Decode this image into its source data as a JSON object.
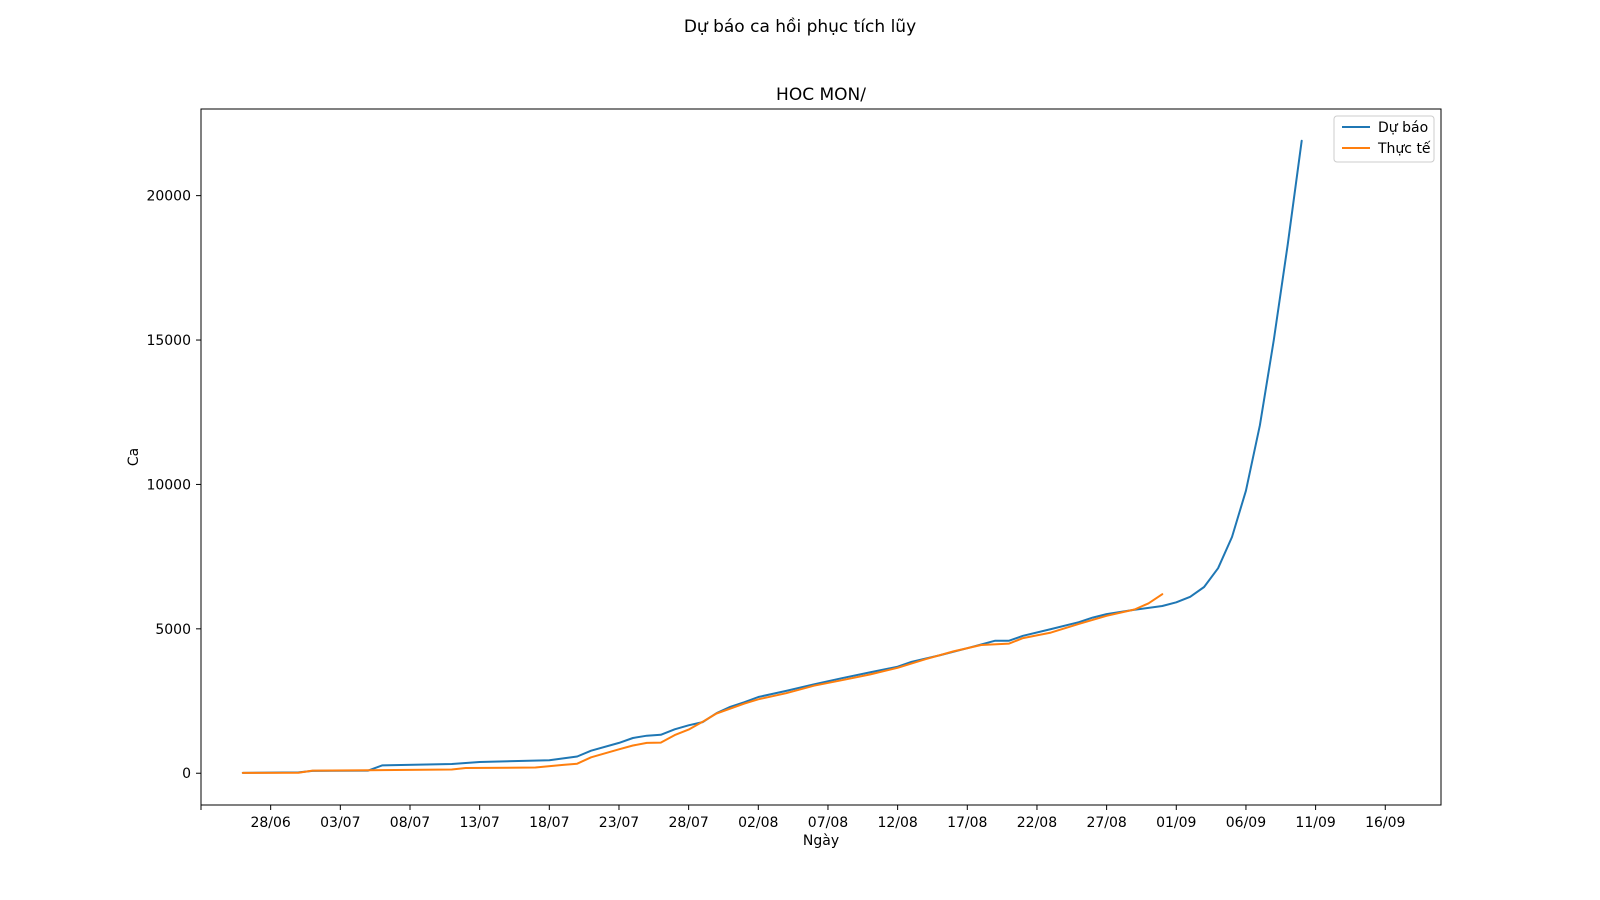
{
  "figure_title": "Dự báo ca hồi phục tích lũy",
  "chart_data": {
    "type": "line",
    "title": "HOC MON/",
    "xlabel": "Ngày",
    "ylabel": "Ca",
    "x_axis_type": "date",
    "xlim": [
      "2021-06-23",
      "2021-09-20"
    ],
    "ylim": [
      -1100,
      23000
    ],
    "x_ticks": [
      {
        "date": "2021-06-23",
        "label": ""
      },
      {
        "date": "2021-06-28",
        "label": "28/06"
      },
      {
        "date": "2021-07-03",
        "label": "03/07"
      },
      {
        "date": "2021-07-08",
        "label": "08/07"
      },
      {
        "date": "2021-07-13",
        "label": "13/07"
      },
      {
        "date": "2021-07-18",
        "label": "18/07"
      },
      {
        "date": "2021-07-23",
        "label": "23/07"
      },
      {
        "date": "2021-07-28",
        "label": "28/07"
      },
      {
        "date": "2021-08-02",
        "label": "02/08"
      },
      {
        "date": "2021-08-07",
        "label": "07/08"
      },
      {
        "date": "2021-08-12",
        "label": "12/08"
      },
      {
        "date": "2021-08-17",
        "label": "17/08"
      },
      {
        "date": "2021-08-22",
        "label": "22/08"
      },
      {
        "date": "2021-08-27",
        "label": "27/08"
      },
      {
        "date": "2021-09-01",
        "label": "01/09"
      },
      {
        "date": "2021-09-06",
        "label": "06/09"
      },
      {
        "date": "2021-09-11",
        "label": "11/09"
      },
      {
        "date": "2021-09-16",
        "label": "16/09"
      }
    ],
    "y_ticks": [
      0,
      5000,
      10000,
      15000,
      20000
    ],
    "grid": false,
    "legend_position": "top-right",
    "series": [
      {
        "name": "Dự báo",
        "color": "#1f77b4",
        "points": [
          [
            "2021-06-26",
            10
          ],
          [
            "2021-06-30",
            30
          ],
          [
            "2021-07-01",
            80
          ],
          [
            "2021-07-05",
            90
          ],
          [
            "2021-07-06",
            270
          ],
          [
            "2021-07-11",
            320
          ],
          [
            "2021-07-13",
            390
          ],
          [
            "2021-07-18",
            450
          ],
          [
            "2021-07-20",
            580
          ],
          [
            "2021-07-21",
            780
          ],
          [
            "2021-07-23",
            1050
          ],
          [
            "2021-07-24",
            1220
          ],
          [
            "2021-07-25",
            1300
          ],
          [
            "2021-07-26",
            1330
          ],
          [
            "2021-07-27",
            1520
          ],
          [
            "2021-07-28",
            1660
          ],
          [
            "2021-07-29",
            1770
          ],
          [
            "2021-07-30",
            2080
          ],
          [
            "2021-07-31",
            2300
          ],
          [
            "2021-08-01",
            2460
          ],
          [
            "2021-08-02",
            2640
          ],
          [
            "2021-08-04",
            2850
          ],
          [
            "2021-08-06",
            3080
          ],
          [
            "2021-08-08",
            3290
          ],
          [
            "2021-08-10",
            3490
          ],
          [
            "2021-08-12",
            3690
          ],
          [
            "2021-08-13",
            3860
          ],
          [
            "2021-08-15",
            4080
          ],
          [
            "2021-08-17",
            4330
          ],
          [
            "2021-08-19",
            4590
          ],
          [
            "2021-08-20",
            4590
          ],
          [
            "2021-08-21",
            4760
          ],
          [
            "2021-08-23",
            4990
          ],
          [
            "2021-08-25",
            5230
          ],
          [
            "2021-08-26",
            5390
          ],
          [
            "2021-08-27",
            5510
          ],
          [
            "2021-08-29",
            5660
          ],
          [
            "2021-08-31",
            5790
          ],
          [
            "2021-09-01",
            5920
          ],
          [
            "2021-09-02",
            6110
          ],
          [
            "2021-09-03",
            6450
          ],
          [
            "2021-09-04",
            7100
          ],
          [
            "2021-09-05",
            8180
          ],
          [
            "2021-09-06",
            9780
          ],
          [
            "2021-09-07",
            12050
          ],
          [
            "2021-09-08",
            15000
          ],
          [
            "2021-09-09",
            18300
          ],
          [
            "2021-09-10",
            21900
          ]
        ]
      },
      {
        "name": "Thực tế",
        "color": "#ff7f0e",
        "points": [
          [
            "2021-06-26",
            10
          ],
          [
            "2021-06-30",
            20
          ],
          [
            "2021-07-01",
            90
          ],
          [
            "2021-07-05",
            100
          ],
          [
            "2021-07-11",
            130
          ],
          [
            "2021-07-12",
            180
          ],
          [
            "2021-07-17",
            200
          ],
          [
            "2021-07-19",
            290
          ],
          [
            "2021-07-20",
            330
          ],
          [
            "2021-07-21",
            550
          ],
          [
            "2021-07-23",
            830
          ],
          [
            "2021-07-24",
            960
          ],
          [
            "2021-07-25",
            1050
          ],
          [
            "2021-07-26",
            1060
          ],
          [
            "2021-07-27",
            1320
          ],
          [
            "2021-07-28",
            1510
          ],
          [
            "2021-07-29",
            1780
          ],
          [
            "2021-07-30",
            2070
          ],
          [
            "2021-08-01",
            2410
          ],
          [
            "2021-08-02",
            2560
          ],
          [
            "2021-08-04",
            2770
          ],
          [
            "2021-08-06",
            3030
          ],
          [
            "2021-08-08",
            3220
          ],
          [
            "2021-08-10",
            3420
          ],
          [
            "2021-08-12",
            3650
          ],
          [
            "2021-08-14",
            3950
          ],
          [
            "2021-08-16",
            4220
          ],
          [
            "2021-08-18",
            4440
          ],
          [
            "2021-08-20",
            4490
          ],
          [
            "2021-08-21",
            4680
          ],
          [
            "2021-08-23",
            4870
          ],
          [
            "2021-08-25",
            5170
          ],
          [
            "2021-08-27",
            5450
          ],
          [
            "2021-08-29",
            5670
          ],
          [
            "2021-08-30",
            5880
          ],
          [
            "2021-08-31",
            6200
          ]
        ]
      }
    ]
  }
}
